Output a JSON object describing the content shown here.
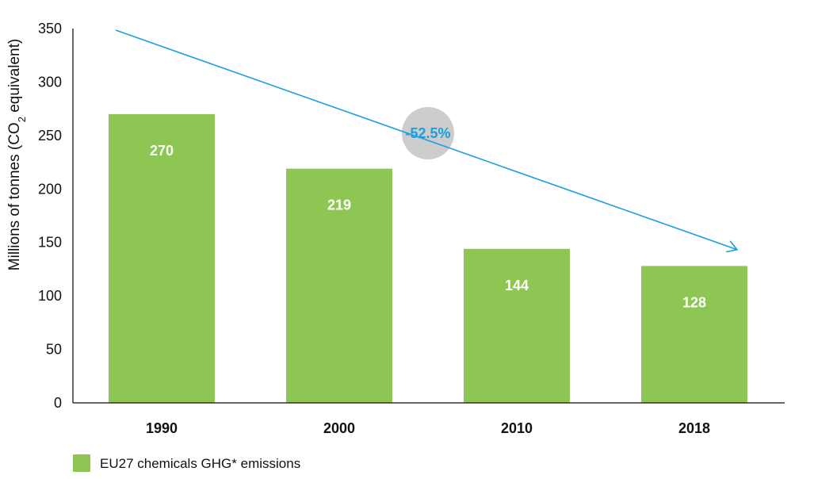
{
  "chart_data": {
    "type": "bar",
    "categories": [
      "1990",
      "2000",
      "2010",
      "2018"
    ],
    "series": [
      {
        "name": "EU27 chemicals GHG* emissions",
        "values": [
          270,
          219,
          144,
          128
        ]
      }
    ],
    "data_labels": [
      "270",
      "219",
      "144",
      "128"
    ],
    "ylabel": "Millions of tonnes (CO",
    "ylabel_subscript": "2",
    "ylabel_suffix": " equivalent)",
    "ylim": [
      0,
      350
    ],
    "yticks": [
      0,
      50,
      100,
      150,
      200,
      250,
      300,
      350
    ],
    "ytick_labels": [
      "0",
      "50",
      "100",
      "150",
      "200",
      "250",
      "300",
      "350"
    ],
    "legend": {
      "label": "EU27 chemicals GHG* emissions",
      "position": "bottom-left"
    },
    "annotation": {
      "text": "-52.5%",
      "from_value": 350,
      "to_value": 150
    },
    "colors": {
      "bar": "#8dc653",
      "arrow": "#1b9fe0",
      "bubble": "#cccccc",
      "axis": "#333333"
    }
  }
}
